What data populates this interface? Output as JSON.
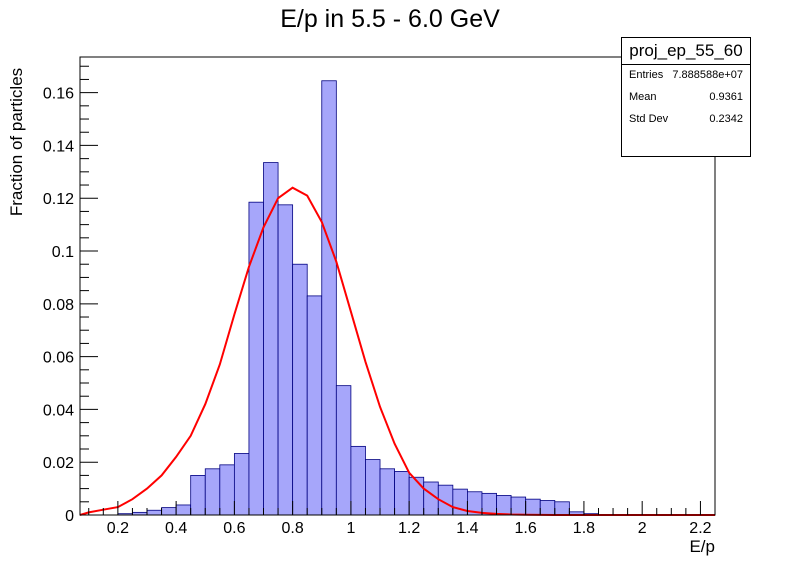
{
  "chart_data": {
    "type": "bar",
    "title": "E/p in 5.5 - 6.0 GeV",
    "xlabel": "E/p",
    "ylabel": "Fraction of particles",
    "xlim": [
      0.07,
      2.25
    ],
    "ylim": [
      0,
      0.1735
    ],
    "xticks": [
      0.2,
      0.4,
      0.6,
      0.8,
      1,
      1.2,
      1.4,
      1.6,
      1.8,
      2,
      2.2
    ],
    "xtick_labels": [
      "0.2",
      "0.4",
      "0.6",
      "0.8",
      "1",
      "1.2",
      "1.4",
      "1.6",
      "1.8",
      "2",
      "2.2"
    ],
    "yticks": [
      0,
      0.02,
      0.04,
      0.06,
      0.08,
      0.1,
      0.12,
      0.14,
      0.16
    ],
    "ytick_labels": [
      "0",
      "0.02",
      "0.04",
      "0.06",
      "0.08",
      "0.1",
      "0.12",
      "0.14",
      "0.16"
    ],
    "bin_edges": [
      0.2,
      0.25,
      0.3,
      0.35,
      0.4,
      0.45,
      0.5,
      0.55,
      0.6,
      0.65,
      0.7,
      0.75,
      0.8,
      0.85,
      0.9,
      0.95,
      1.0,
      1.05,
      1.1,
      1.15,
      1.2,
      1.25,
      1.3,
      1.35,
      1.4,
      1.45,
      1.5,
      1.55,
      1.6,
      1.65,
      1.7,
      1.75,
      1.8,
      1.85
    ],
    "values": [
      0.0005,
      0.001,
      0.0018,
      0.0028,
      0.0038,
      0.015,
      0.0175,
      0.019,
      0.0233,
      0.1185,
      0.1335,
      0.1175,
      0.095,
      0.083,
      0.1645,
      0.049,
      0.026,
      0.021,
      0.0175,
      0.0165,
      0.0143,
      0.0125,
      0.0113,
      0.0098,
      0.0088,
      0.0082,
      0.0074,
      0.0068,
      0.006,
      0.0055,
      0.005,
      0.0012,
      0.0005
    ],
    "fit": {
      "type": "gaussian",
      "amplitude": 0.1245,
      "mean": 0.815,
      "sigma": 0.15,
      "color": "#ff0000",
      "x": [
        0.07,
        0.1,
        0.15,
        0.2,
        0.25,
        0.3,
        0.35,
        0.4,
        0.45,
        0.5,
        0.55,
        0.6,
        0.65,
        0.7,
        0.75,
        0.8,
        0.85,
        0.9,
        0.95,
        1.0,
        1.05,
        1.1,
        1.15,
        1.2,
        1.25,
        1.3,
        1.35,
        1.4,
        1.45,
        1.5,
        1.55,
        1.6,
        1.7,
        1.8,
        1.9,
        2.0,
        2.1,
        2.2,
        2.25
      ],
      "y": [
        0.0,
        0.001,
        0.002,
        0.003,
        0.006,
        0.01,
        0.015,
        0.022,
        0.03,
        0.042,
        0.057,
        0.076,
        0.094,
        0.109,
        0.12,
        0.124,
        0.121,
        0.111,
        0.096,
        0.077,
        0.058,
        0.041,
        0.027,
        0.016,
        0.01,
        0.006,
        0.003,
        0.0015,
        0.0008,
        0.0004,
        0.0002,
        0.0001,
        0.0,
        0.0,
        0.0,
        0.0,
        0.0,
        0.0,
        0.0
      ]
    },
    "fill_color": "#a6a6fa",
    "edge_color": "#000080",
    "grid": false,
    "legend": "none"
  },
  "stats": {
    "name": "proj_ep_55_60",
    "rows": [
      {
        "key": "Entries",
        "value": "7.888588e+07"
      },
      {
        "key": "Mean",
        "value": "0.9361"
      },
      {
        "key": "Std Dev",
        "value": "0.2342"
      }
    ]
  }
}
